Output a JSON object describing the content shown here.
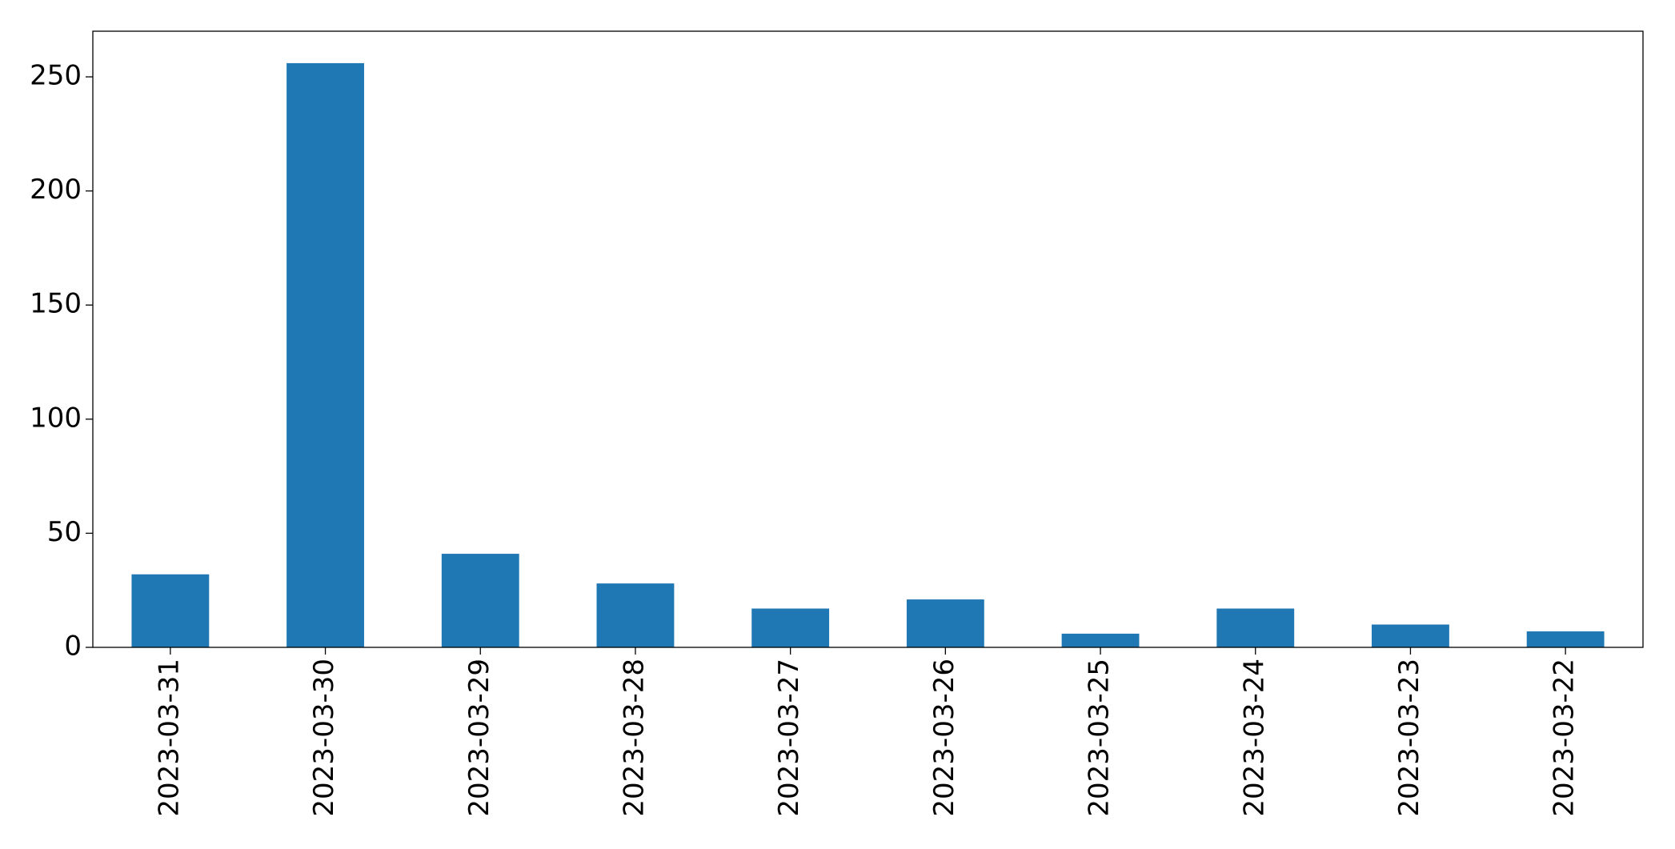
{
  "chart_data": {
    "type": "bar",
    "categories": [
      "2023-03-31",
      "2023-03-30",
      "2023-03-29",
      "2023-03-28",
      "2023-03-27",
      "2023-03-26",
      "2023-03-25",
      "2023-03-24",
      "2023-03-23",
      "2023-03-22"
    ],
    "values": [
      32,
      256,
      41,
      28,
      17,
      21,
      6,
      17,
      10,
      7
    ],
    "color": "#1f77b4",
    "ylim": [
      0,
      270
    ],
    "yticks": [
      0,
      50,
      100,
      150,
      200,
      250
    ],
    "grid": false
  }
}
